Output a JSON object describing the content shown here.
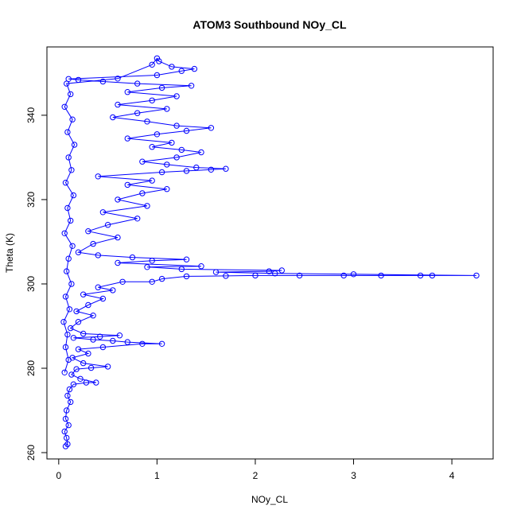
{
  "chart_data": {
    "type": "scatter",
    "title": "ATOM3 Southbound NOy_CL",
    "xlabel": "NOy_CL",
    "ylabel": "Theta (K)",
    "xlim": [
      -0.12,
      4.42
    ],
    "ylim": [
      258.5,
      356.2
    ],
    "xticks": [
      0,
      1,
      2,
      3,
      4
    ],
    "yticks": [
      260,
      280,
      300,
      320,
      340
    ],
    "xtick_labels": [
      "0",
      "1",
      "2",
      "3",
      "4"
    ],
    "ytick_labels": [
      "260",
      "280",
      "300",
      "320",
      "340"
    ],
    "grid": false,
    "legend": "none",
    "marker": "open-circle",
    "connect_points": true,
    "color": "#0000ff",
    "points": [
      [
        0.07,
        261.5
      ],
      [
        0.09,
        262.0
      ],
      [
        0.08,
        263.5
      ],
      [
        0.06,
        265.0
      ],
      [
        0.1,
        266.5
      ],
      [
        0.07,
        268.0
      ],
      [
        0.08,
        270.0
      ],
      [
        0.12,
        272.0
      ],
      [
        0.09,
        273.5
      ],
      [
        0.11,
        275.0
      ],
      [
        0.15,
        276.2
      ],
      [
        0.28,
        276.6
      ],
      [
        0.38,
        276.6
      ],
      [
        0.22,
        277.5
      ],
      [
        0.13,
        278.5
      ],
      [
        0.18,
        279.8
      ],
      [
        0.33,
        280.1
      ],
      [
        0.5,
        280.4
      ],
      [
        0.25,
        281.2
      ],
      [
        0.14,
        282.5
      ],
      [
        0.3,
        283.5
      ],
      [
        0.2,
        284.5
      ],
      [
        0.45,
        285.0
      ],
      [
        0.85,
        285.8
      ],
      [
        1.05,
        285.8
      ],
      [
        0.7,
        286.2
      ],
      [
        0.55,
        286.5
      ],
      [
        0.35,
        286.8
      ],
      [
        0.15,
        287.2
      ],
      [
        0.42,
        287.5
      ],
      [
        0.62,
        287.8
      ],
      [
        0.25,
        288.2
      ],
      [
        0.12,
        289.5
      ],
      [
        0.2,
        291.0
      ],
      [
        0.35,
        292.5
      ],
      [
        0.18,
        293.5
      ],
      [
        0.3,
        295.0
      ],
      [
        0.45,
        296.5
      ],
      [
        0.25,
        297.5
      ],
      [
        0.55,
        298.5
      ],
      [
        0.4,
        299.2
      ],
      [
        0.65,
        300.5
      ],
      [
        0.95,
        300.5
      ],
      [
        1.05,
        301.2
      ],
      [
        1.3,
        301.8
      ],
      [
        1.7,
        301.9
      ],
      [
        2.0,
        302.0
      ],
      [
        2.45,
        302.0
      ],
      [
        2.9,
        302.0
      ],
      [
        3.28,
        302.0
      ],
      [
        3.68,
        302.0
      ],
      [
        3.8,
        302.0
      ],
      [
        4.25,
        302.0
      ],
      [
        3.0,
        302.3
      ],
      [
        2.2,
        302.5
      ],
      [
        1.6,
        302.8
      ],
      [
        2.14,
        303.0
      ],
      [
        2.27,
        303.2
      ],
      [
        1.25,
        303.5
      ],
      [
        0.9,
        304.0
      ],
      [
        1.45,
        304.2
      ],
      [
        0.6,
        305.0
      ],
      [
        0.95,
        305.5
      ],
      [
        1.3,
        305.8
      ],
      [
        0.75,
        306.3
      ],
      [
        0.4,
        306.8
      ],
      [
        0.2,
        307.5
      ],
      [
        0.35,
        309.5
      ],
      [
        0.6,
        311.0
      ],
      [
        0.3,
        312.5
      ],
      [
        0.5,
        314.0
      ],
      [
        0.8,
        315.5
      ],
      [
        0.45,
        317.0
      ],
      [
        0.9,
        318.5
      ],
      [
        0.6,
        320.0
      ],
      [
        0.85,
        321.5
      ],
      [
        1.1,
        322.5
      ],
      [
        0.7,
        323.5
      ],
      [
        0.95,
        324.5
      ],
      [
        0.4,
        325.5
      ],
      [
        1.05,
        326.5
      ],
      [
        1.3,
        326.8
      ],
      [
        1.55,
        327.1
      ],
      [
        1.7,
        327.3
      ],
      [
        1.4,
        327.6
      ],
      [
        1.1,
        328.3
      ],
      [
        0.85,
        329.0
      ],
      [
        1.2,
        330.0
      ],
      [
        1.45,
        331.2
      ],
      [
        1.25,
        331.8
      ],
      [
        0.95,
        332.5
      ],
      [
        1.15,
        333.5
      ],
      [
        0.7,
        334.5
      ],
      [
        1.0,
        335.5
      ],
      [
        1.3,
        336.3
      ],
      [
        1.55,
        337.0
      ],
      [
        1.2,
        337.5
      ],
      [
        0.9,
        338.5
      ],
      [
        0.55,
        339.5
      ],
      [
        0.8,
        340.5
      ],
      [
        1.1,
        341.5
      ],
      [
        0.6,
        342.5
      ],
      [
        0.95,
        343.5
      ],
      [
        1.2,
        344.5
      ],
      [
        0.7,
        345.5
      ],
      [
        1.05,
        346.5
      ],
      [
        1.35,
        347.0
      ],
      [
        0.8,
        347.5
      ],
      [
        0.45,
        348.0
      ],
      [
        0.2,
        348.4
      ],
      [
        0.1,
        348.6
      ],
      [
        1.0,
        349.5
      ],
      [
        1.25,
        350.5
      ],
      [
        1.38,
        351.0
      ],
      [
        1.15,
        351.5
      ],
      [
        1.02,
        352.8
      ],
      [
        1.0,
        353.5
      ],
      [
        0.95,
        352.0
      ],
      [
        0.6,
        348.7
      ],
      [
        0.08,
        347.5
      ],
      [
        0.12,
        345.0
      ],
      [
        0.06,
        342.0
      ],
      [
        0.14,
        339.0
      ],
      [
        0.09,
        336.0
      ],
      [
        0.16,
        333.0
      ],
      [
        0.1,
        330.0
      ],
      [
        0.13,
        327.0
      ],
      [
        0.07,
        324.0
      ],
      [
        0.15,
        321.0
      ],
      [
        0.09,
        318.0
      ],
      [
        0.12,
        315.0
      ],
      [
        0.06,
        312.0
      ],
      [
        0.14,
        309.0
      ],
      [
        0.1,
        306.0
      ],
      [
        0.08,
        303.0
      ],
      [
        0.13,
        300.0
      ],
      [
        0.07,
        297.0
      ],
      [
        0.11,
        294.0
      ],
      [
        0.05,
        291.0
      ],
      [
        0.09,
        288.0
      ],
      [
        0.07,
        285.0
      ],
      [
        0.1,
        282.0
      ],
      [
        0.06,
        279.0
      ]
    ]
  }
}
